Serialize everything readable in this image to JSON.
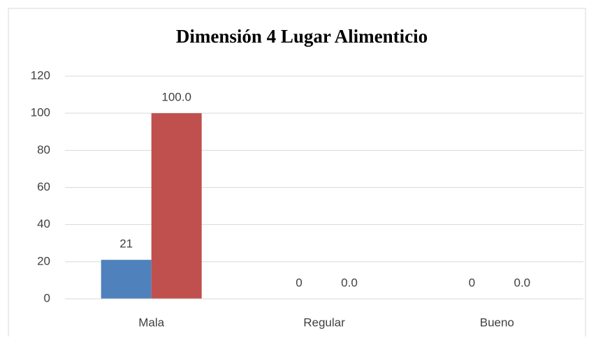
{
  "chart_data": {
    "type": "bar",
    "title": "Dimensión 4 Lugar Alimenticio",
    "categories": [
      "Mala",
      "Regular",
      "Bueno"
    ],
    "series": [
      {
        "color": "#4f81bd",
        "values": [
          21,
          0,
          0
        ]
      },
      {
        "color": "#c0504d",
        "values": [
          100,
          0,
          0
        ],
        "value_labels": [
          "100.0",
          "0.0",
          "0.0"
        ]
      }
    ],
    "ylim": [
      0,
      120
    ],
    "yticks": [
      0,
      20,
      40,
      60,
      80,
      100,
      120
    ],
    "grid": true
  }
}
